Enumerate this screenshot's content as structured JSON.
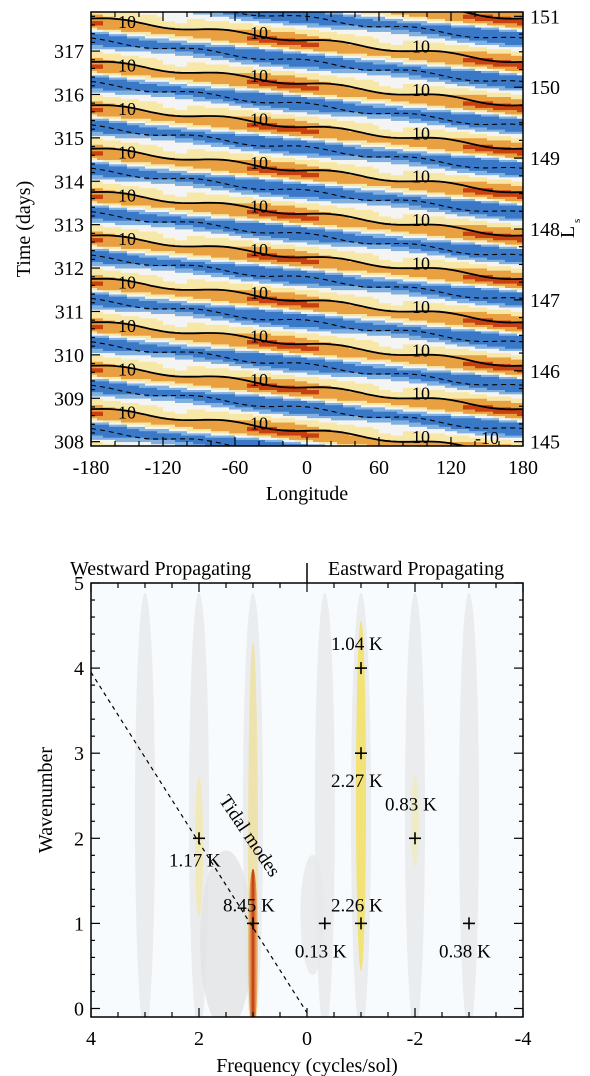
{
  "chart_data": [
    {
      "type": "heatmap",
      "xlabel": "Longitude",
      "ylabel": "Time (days)",
      "y2label": "L",
      "y2label_sub": "s",
      "xlim": [
        -180,
        180
      ],
      "ylim": [
        307.9,
        317.9
      ],
      "x_ticks": [
        "-180",
        "-120",
        "-60",
        "0",
        "60",
        "120",
        "180"
      ],
      "y_ticks": [
        "308",
        "309",
        "310",
        "311",
        "312",
        "313",
        "314",
        "315",
        "316",
        "317"
      ],
      "y2_ticks": [
        "145",
        "146",
        "147",
        "148",
        "149",
        "150",
        "151"
      ],
      "contour_level_labels": [
        "10",
        "-10"
      ],
      "colors": {
        "warm": "#e8a040",
        "hot": "#c84010",
        "pale": "#f8e8a8",
        "cool": "#7fb0e0",
        "cold": "#3a78c8",
        "mid": "#f4f4f4"
      }
    },
    {
      "type": "scatter",
      "xlabel": "Frequency (cycles/sol)",
      "ylabel": "Wavenumber",
      "xlim": [
        4,
        -4
      ],
      "ylim": [
        -0.1,
        5
      ],
      "x_ticks": [
        "4",
        "2",
        "0",
        "-2",
        "-4"
      ],
      "y_ticks": [
        "0",
        "1",
        "2",
        "3",
        "4",
        "5"
      ],
      "top_labels": {
        "west": "Westward Propagating",
        "east": "Eastward Propagating"
      },
      "tidal_line_label": "Tidal modes",
      "points": [
        {
          "x": 2,
          "y": 2,
          "label": "1.17 K"
        },
        {
          "x": 1,
          "y": 1,
          "label": "8.45 K"
        },
        {
          "x": -0.33,
          "y": 1,
          "label": "0.13 K"
        },
        {
          "x": -1,
          "y": 1,
          "label": "2.26 K"
        },
        {
          "x": -1,
          "y": 3,
          "label": "2.27 K"
        },
        {
          "x": -1,
          "y": 4,
          "label": "1.04 K"
        },
        {
          "x": -2,
          "y": 2,
          "label": "0.83 K"
        },
        {
          "x": -3,
          "y": 1,
          "label": "0.38 K"
        }
      ]
    }
  ]
}
